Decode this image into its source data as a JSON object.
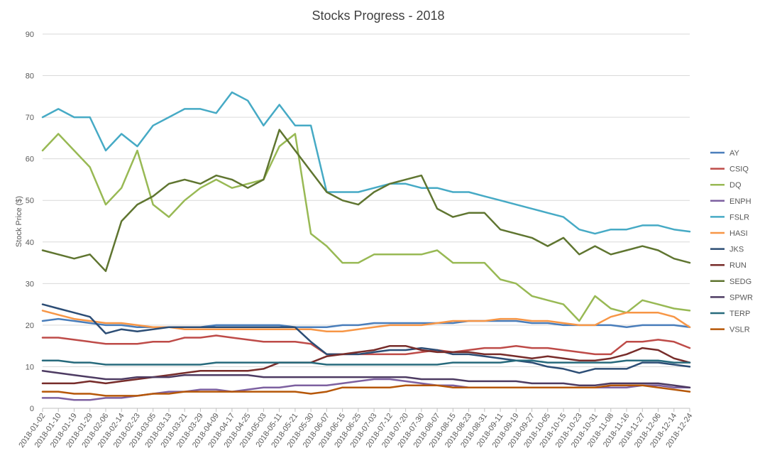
{
  "chart_data": {
    "type": "line",
    "title": "Stocks Progress - 2018",
    "xlabel": "",
    "ylabel": "Stock Price ($)",
    "ylim": [
      0,
      90
    ],
    "y_ticks": [
      0,
      10,
      20,
      30,
      40,
      50,
      60,
      70,
      80,
      90
    ],
    "gridlines": true,
    "legend_position": "right",
    "x": [
      "2018-01-02",
      "2018-01-10",
      "2018-01-19",
      "2018-01-29",
      "2018-02-06",
      "2018-02-14",
      "2018-02-23",
      "2018-03-05",
      "2018-03-13",
      "2018-03-21",
      "2018-03-29",
      "2018-04-09",
      "2018-04-17",
      "2018-04-25",
      "2018-05-03",
      "2018-05-11",
      "2018-05-21",
      "2018-05-30",
      "2018-06-07",
      "2018-06-15",
      "2018-06-25",
      "2018-07-03",
      "2018-07-12",
      "2018-07-20",
      "2018-07-30",
      "2018-08-07",
      "2018-08-15",
      "2018-08-23",
      "2018-08-31",
      "2018-09-11",
      "2018-09-19",
      "2018-09-27",
      "2018-10-05",
      "2018-10-15",
      "2018-10-23",
      "2018-10-31",
      "2018-11-08",
      "2018-11-16",
      "2018-11-27",
      "2018-12-06",
      "2018-12-14",
      "2018-12-24"
    ],
    "series": [
      {
        "name": "AY",
        "color": "#4a7ebb",
        "values": [
          21,
          21.5,
          21,
          20.5,
          20,
          20,
          19.5,
          19.5,
          19.5,
          19.5,
          19.5,
          20,
          20,
          20,
          20,
          20,
          19.5,
          19.5,
          19.5,
          20,
          20,
          20.5,
          20.5,
          20.5,
          20.5,
          20.5,
          20.5,
          21,
          21,
          21,
          21,
          20.5,
          20.5,
          20,
          20,
          20,
          20,
          19.5,
          20,
          20,
          20,
          19.5
        ]
      },
      {
        "name": "CSIQ",
        "color": "#be4b48",
        "values": [
          17,
          17,
          16.5,
          16,
          15.5,
          15.5,
          15.5,
          16,
          16,
          17,
          17,
          17.5,
          17,
          16.5,
          16,
          16,
          16,
          15.5,
          13,
          13,
          13,
          13,
          13,
          13,
          13.5,
          14,
          13.5,
          14,
          14.5,
          14.5,
          15,
          14.5,
          14.5,
          14,
          13.5,
          13,
          13,
          16,
          16,
          16.5,
          16,
          14.5
        ]
      },
      {
        "name": "DQ",
        "color": "#98b954",
        "values": [
          62,
          66,
          62,
          58,
          49,
          53,
          62,
          49,
          46,
          50,
          53,
          55,
          53,
          54,
          55,
          63,
          66,
          42,
          39,
          35,
          35,
          37,
          37,
          37,
          37,
          38,
          35,
          35,
          35,
          31,
          30,
          27,
          26,
          25,
          21,
          27,
          24,
          23,
          26,
          25,
          24,
          23.5
        ]
      },
      {
        "name": "ENPH",
        "color": "#7d60a0",
        "values": [
          2.5,
          2.5,
          2,
          2,
          2.5,
          2.5,
          3,
          3.5,
          4,
          4,
          4.5,
          4.5,
          4,
          4.5,
          5,
          5,
          5.5,
          5.5,
          5.5,
          6,
          6.5,
          7,
          7,
          6.5,
          6,
          5.5,
          5.5,
          5,
          5,
          5,
          5,
          5,
          5,
          5,
          5,
          5,
          5,
          5,
          5.5,
          5.5,
          5,
          5
        ]
      },
      {
        "name": "FSLR",
        "color": "#46aac5",
        "values": [
          70,
          72,
          70,
          70,
          62,
          66,
          63,
          68,
          70,
          72,
          72,
          71,
          76,
          74,
          68,
          73,
          68,
          68,
          52,
          52,
          52,
          53,
          54,
          54,
          53,
          53,
          52,
          52,
          51,
          50,
          49,
          48,
          47,
          46,
          43,
          42,
          43,
          43,
          44,
          44,
          43,
          42.5
        ]
      },
      {
        "name": "HASI",
        "color": "#f79646",
        "values": [
          23.5,
          22.5,
          21.5,
          21,
          20.5,
          20.5,
          20,
          19.5,
          19.5,
          19,
          19,
          19,
          19,
          19,
          19,
          19,
          19,
          19,
          18.5,
          18.5,
          19,
          19.5,
          20,
          20,
          20,
          20.5,
          21,
          21,
          21,
          21.5,
          21.5,
          21,
          21,
          20.5,
          20,
          20,
          22,
          23,
          23,
          23,
          22,
          19.5
        ]
      },
      {
        "name": "JKS",
        "color": "#2c4d75",
        "values": [
          25,
          24,
          23,
          22,
          18,
          19,
          18.5,
          19,
          19.5,
          19.5,
          19.5,
          19.5,
          19.5,
          19.5,
          19.5,
          19.5,
          19.5,
          16,
          13,
          13,
          13,
          13.5,
          14,
          14,
          14.5,
          14,
          13,
          13,
          12.5,
          12,
          11.5,
          11,
          10,
          9.5,
          8.5,
          9.5,
          9.5,
          9.5,
          11,
          11,
          10.5,
          10
        ]
      },
      {
        "name": "RUN",
        "color": "#772c2a",
        "values": [
          6,
          6,
          6,
          6.5,
          6,
          6.5,
          7,
          7.5,
          8,
          8.5,
          9,
          9,
          9,
          9,
          9.5,
          11,
          11,
          11,
          12.5,
          13,
          13.5,
          14,
          15,
          15,
          14,
          13.5,
          13.5,
          13.5,
          13,
          13,
          12.5,
          12,
          12.5,
          12,
          11.5,
          11.5,
          12,
          13,
          14.5,
          14,
          12,
          11
        ]
      },
      {
        "name": "SEDG",
        "color": "#5f7530",
        "values": [
          38,
          37,
          36,
          37,
          33,
          45,
          49,
          51,
          54,
          55,
          54,
          56,
          55,
          53,
          55,
          67,
          62,
          57,
          52,
          50,
          49,
          52,
          54,
          55,
          56,
          48,
          46,
          47,
          47,
          43,
          42,
          41,
          39,
          41,
          37,
          39,
          37,
          38,
          39,
          38,
          36,
          35
        ]
      },
      {
        "name": "SPWR",
        "color": "#4d3b62",
        "values": [
          9,
          8.5,
          8,
          7.5,
          7,
          7,
          7.5,
          7.5,
          7.5,
          8,
          8,
          8,
          8,
          8,
          7.5,
          7.5,
          7.5,
          7.5,
          7.5,
          7.5,
          7.5,
          7.5,
          7.5,
          7.5,
          7,
          7,
          7,
          6.5,
          6.5,
          6.5,
          6.5,
          6,
          6,
          6,
          5.5,
          5.5,
          6,
          6,
          6,
          6,
          5.5,
          5
        ]
      },
      {
        "name": "TERP",
        "color": "#276a7c",
        "values": [
          11.5,
          11.5,
          11,
          11,
          10.5,
          10.5,
          10.5,
          10.5,
          10.5,
          10.5,
          10.5,
          11,
          11,
          11,
          11,
          11,
          11,
          11,
          10.5,
          10.5,
          10.5,
          10.5,
          10.5,
          10.5,
          10.5,
          10.5,
          11,
          11,
          11,
          11,
          11.5,
          11.5,
          11,
          11,
          11,
          11,
          11,
          11.5,
          11.5,
          11.5,
          11,
          11
        ]
      },
      {
        "name": "VSLR",
        "color": "#b65708",
        "values": [
          4,
          4,
          3.5,
          3.5,
          3,
          3,
          3,
          3.5,
          3.5,
          4,
          4,
          4,
          4,
          4,
          4,
          4,
          4,
          3.5,
          4,
          5,
          5,
          5,
          5,
          5.5,
          5.5,
          5.5,
          5,
          5,
          5,
          5,
          5,
          5,
          5,
          5,
          5,
          5,
          5.5,
          5.5,
          5.5,
          5,
          4.5,
          4
        ]
      }
    ]
  }
}
